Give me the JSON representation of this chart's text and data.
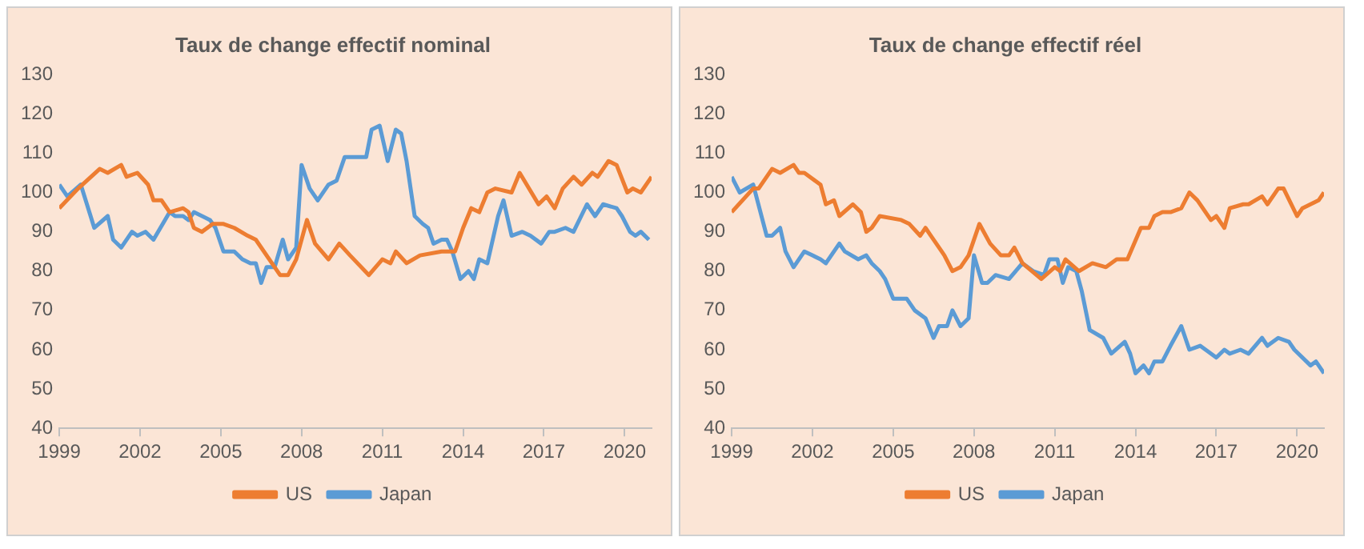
{
  "chart_data": [
    {
      "type": "line",
      "title": "Taux de change effectif nominal",
      "xlim": [
        1999,
        2021
      ],
      "xticks": [
        1999,
        2002,
        2005,
        2008,
        2011,
        2014,
        2017,
        2020
      ],
      "ylim": [
        40,
        130
      ],
      "yticks": [
        40,
        50,
        60,
        70,
        80,
        90,
        100,
        110,
        120,
        130
      ],
      "grid": false,
      "legend": "bottom",
      "marker": "none",
      "line_style": "solid",
      "series": [
        {
          "name": "US",
          "color": "#ed7d31",
          "x": [
            1999.0,
            1999.7,
            2000.5,
            2000.8,
            2001.3,
            2001.5,
            2001.9,
            2002.3,
            2002.5,
            2002.8,
            2003.1,
            2003.6,
            2003.8,
            2004.0,
            2004.3,
            2004.7,
            2005.1,
            2005.5,
            2006.0,
            2006.3,
            2007.2,
            2007.5,
            2007.8,
            2008.2,
            2008.5,
            2009.0,
            2009.4,
            2009.8,
            2010.5,
            2011.0,
            2011.3,
            2011.5,
            2011.9,
            2012.4,
            2013.2,
            2013.7,
            2014.0,
            2014.3,
            2014.6,
            2014.9,
            2015.2,
            2015.8,
            2016.1,
            2016.8,
            2017.1,
            2017.4,
            2017.7,
            2018.1,
            2018.4,
            2018.8,
            2019.0,
            2019.4,
            2019.7,
            2020.1,
            2020.3,
            2020.6,
            2021.0
          ],
          "values": [
            96,
            101,
            106,
            105,
            107,
            104,
            105,
            102,
            98,
            98,
            95,
            96,
            95,
            91,
            90,
            92,
            92,
            91,
            89,
            88,
            79,
            79,
            83,
            93,
            87,
            83,
            87,
            84,
            79,
            83,
            82,
            85,
            82,
            84,
            85,
            85,
            91,
            96,
            95,
            100,
            101,
            100,
            105,
            97,
            99,
            96,
            101,
            104,
            102,
            105,
            104,
            108,
            107,
            100,
            101,
            100,
            104
          ]
        },
        {
          "name": "Japan",
          "color": "#5b9bd5",
          "x": [
            1999.0,
            1999.3,
            1999.8,
            2000.3,
            2000.8,
            2001.0,
            2001.3,
            2001.7,
            2001.9,
            2002.2,
            2002.5,
            2003.1,
            2003.3,
            2003.6,
            2003.8,
            2004.0,
            2004.6,
            2004.8,
            2005.1,
            2005.3,
            2005.5,
            2005.8,
            2006.1,
            2006.3,
            2006.5,
            2006.7,
            2007.0,
            2007.3,
            2007.5,
            2007.8,
            2008.0,
            2008.3,
            2008.6,
            2009.0,
            2009.3,
            2009.6,
            2010.0,
            2010.4,
            2010.6,
            2010.9,
            2011.2,
            2011.5,
            2011.7,
            2011.9,
            2012.2,
            2012.5,
            2012.7,
            2012.9,
            2013.2,
            2013.4,
            2013.6,
            2013.9,
            2014.2,
            2014.4,
            2014.6,
            2014.9,
            2015.3,
            2015.5,
            2015.8,
            2016.2,
            2016.5,
            2016.9,
            2017.2,
            2017.4,
            2017.8,
            2018.1,
            2018.6,
            2018.9,
            2019.2,
            2019.7,
            2019.9,
            2020.2,
            2020.4,
            2020.6,
            2020.9
          ],
          "values": [
            102,
            99,
            102,
            91,
            94,
            88,
            86,
            90,
            89,
            90,
            88,
            95,
            94,
            94,
            93,
            95,
            93,
            91,
            85,
            85,
            85,
            83,
            82,
            82,
            77,
            81,
            81,
            88,
            83,
            86,
            107,
            101,
            98,
            102,
            103,
            109,
            109,
            109,
            116,
            117,
            108,
            116,
            115,
            108,
            94,
            92,
            91,
            87,
            88,
            88,
            85,
            78,
            80,
            78,
            83,
            82,
            94,
            98,
            89,
            90,
            89,
            87,
            90,
            90,
            91,
            90,
            97,
            94,
            97,
            96,
            94,
            90,
            89,
            90,
            88
          ]
        }
      ]
    },
    {
      "type": "line",
      "title": "Taux de change effectif réel",
      "xlim": [
        1999,
        2021
      ],
      "xticks": [
        1999,
        2002,
        2005,
        2008,
        2011,
        2014,
        2017,
        2020
      ],
      "ylim": [
        40,
        130
      ],
      "yticks": [
        40,
        50,
        60,
        70,
        80,
        90,
        100,
        110,
        120,
        130
      ],
      "grid": false,
      "legend": "bottom",
      "marker": "none",
      "line_style": "solid",
      "series": [
        {
          "name": "US",
          "color": "#ed7d31",
          "x": [
            1999.0,
            1999.8,
            2000.0,
            2000.5,
            2000.8,
            2001.3,
            2001.5,
            2001.7,
            2002.3,
            2002.5,
            2002.8,
            2003.0,
            2003.5,
            2003.8,
            2004.0,
            2004.2,
            2004.5,
            2005.3,
            2005.6,
            2006.0,
            2006.2,
            2006.4,
            2006.8,
            2006.9,
            2007.2,
            2007.5,
            2007.8,
            2008.2,
            2008.6,
            2009.0,
            2009.3,
            2009.5,
            2009.8,
            2010.5,
            2011.0,
            2011.2,
            2011.4,
            2011.9,
            2012.4,
            2012.9,
            2013.3,
            2013.7,
            2014.2,
            2014.5,
            2014.7,
            2015.0,
            2015.3,
            2015.7,
            2016.0,
            2016.3,
            2016.8,
            2017.0,
            2017.3,
            2017.5,
            2018.0,
            2018.2,
            2018.7,
            2018.9,
            2019.3,
            2019.5,
            2020.0,
            2020.2,
            2020.5,
            2020.8,
            2021.0
          ],
          "values": [
            95,
            101,
            101,
            106,
            105,
            107,
            105,
            105,
            102,
            97,
            98,
            94,
            97,
            95,
            90,
            91,
            94,
            93,
            92,
            89,
            91,
            89,
            85,
            84,
            80,
            81,
            84,
            92,
            87,
            84,
            84,
            86,
            82,
            78,
            81,
            80,
            83,
            80,
            82,
            81,
            83,
            83,
            91,
            91,
            94,
            95,
            95,
            96,
            100,
            98,
            93,
            94,
            91,
            96,
            97,
            97,
            99,
            97,
            101,
            101,
            94,
            96,
            97,
            98,
            100
          ]
        },
        {
          "name": "Japan",
          "color": "#5b9bd5",
          "x": [
            1999.0,
            1999.3,
            1999.8,
            2000.3,
            2000.5,
            2000.8,
            2001.0,
            2001.3,
            2001.7,
            2002.0,
            2002.3,
            2002.5,
            2003.0,
            2003.2,
            2003.7,
            2004.0,
            2004.2,
            2004.5,
            2004.7,
            2005.0,
            2005.2,
            2005.5,
            2005.8,
            2006.2,
            2006.5,
            2006.7,
            2007.0,
            2007.2,
            2007.5,
            2007.8,
            2008.0,
            2008.3,
            2008.5,
            2008.8,
            2009.3,
            2009.8,
            2010.2,
            2010.6,
            2010.8,
            2011.1,
            2011.3,
            2011.5,
            2011.8,
            2012.0,
            2012.3,
            2012.8,
            2013.1,
            2013.6,
            2013.8,
            2014.0,
            2014.3,
            2014.5,
            2014.7,
            2015.0,
            2015.3,
            2015.7,
            2016.0,
            2016.4,
            2017.0,
            2017.3,
            2017.5,
            2017.9,
            2018.2,
            2018.7,
            2018.9,
            2019.3,
            2019.7,
            2019.9,
            2020.5,
            2020.7,
            2021.0
          ],
          "values": [
            104,
            100,
            102,
            89,
            89,
            91,
            85,
            81,
            85,
            84,
            83,
            82,
            87,
            85,
            83,
            84,
            82,
            80,
            78,
            73,
            73,
            73,
            70,
            68,
            63,
            66,
            66,
            70,
            66,
            68,
            84,
            77,
            77,
            79,
            78,
            82,
            80,
            79,
            83,
            83,
            77,
            81,
            80,
            75,
            65,
            63,
            59,
            62,
            59,
            54,
            56,
            54,
            57,
            57,
            61,
            66,
            60,
            61,
            58,
            60,
            59,
            60,
            59,
            63,
            61,
            63,
            62,
            60,
            56,
            57,
            54
          ]
        }
      ]
    }
  ]
}
